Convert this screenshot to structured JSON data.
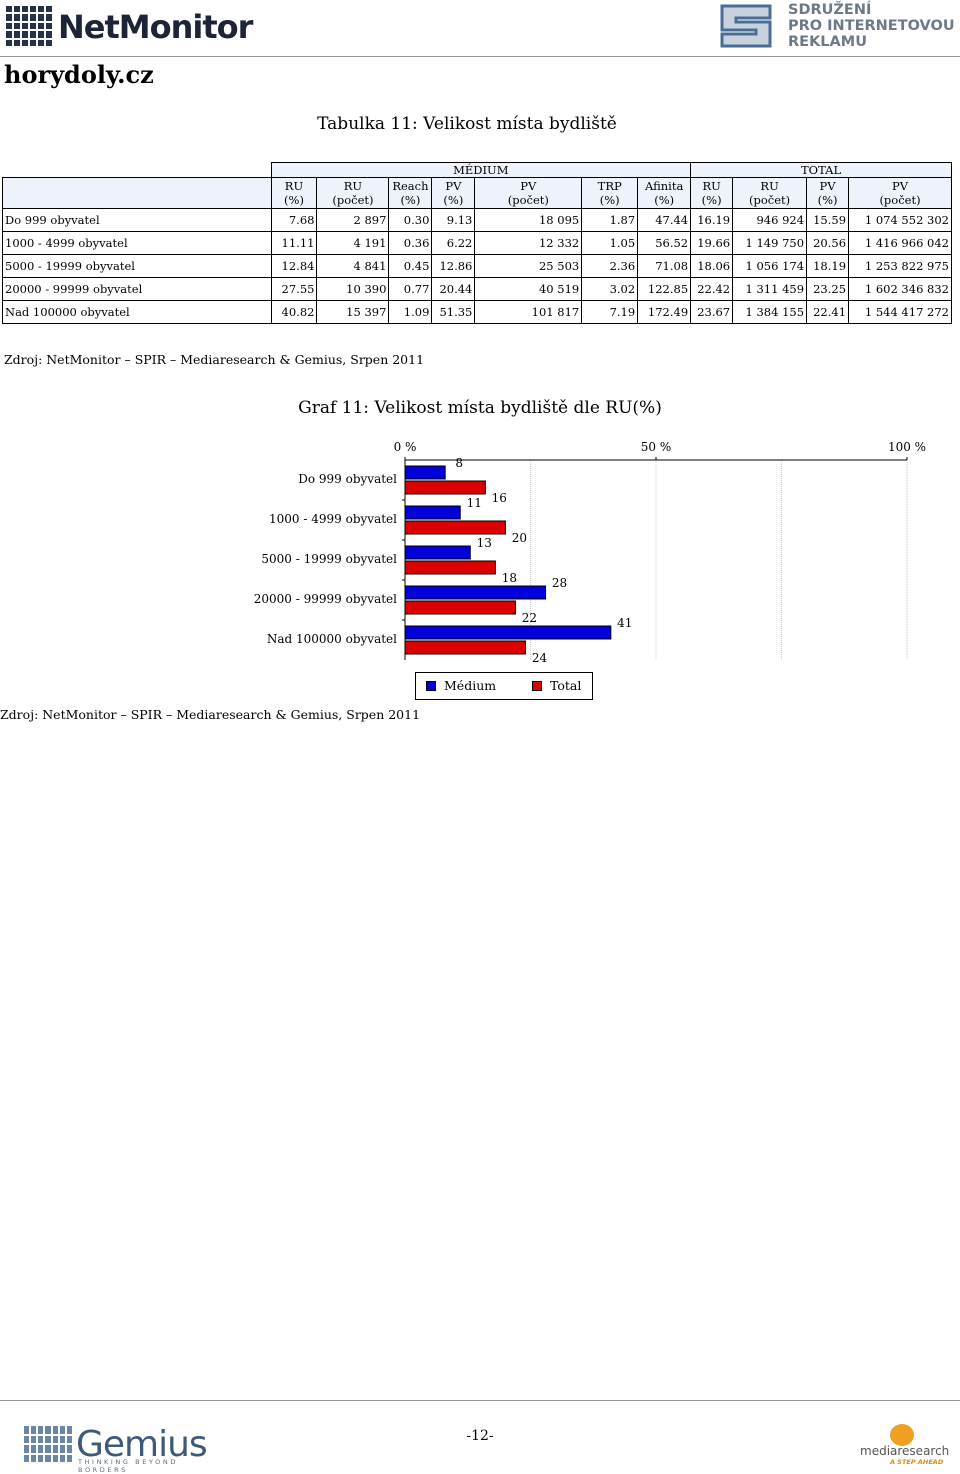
{
  "header": {
    "logo_text": "NetMonitor",
    "partner_logo_lines": [
      "SDRUŽENÍ",
      "PRO INTERNETOVOU",
      "REKLAMU"
    ],
    "site": "horydoly.cz"
  },
  "table": {
    "title": "Tabulka 11: Velikost místa bydliště",
    "group_medium": "MÉDIUM",
    "group_total": "TOTAL",
    "columns": [
      [
        "RU",
        "(%)"
      ],
      [
        "RU",
        "(počet)"
      ],
      [
        "Reach",
        "(%)"
      ],
      [
        "PV",
        "(%)"
      ],
      [
        "PV",
        "(počet)"
      ],
      [
        "TRP",
        "(%)"
      ],
      [
        "Afinita",
        "(%)"
      ],
      [
        "RU",
        "(%)"
      ],
      [
        "RU",
        "(počet)"
      ],
      [
        "PV",
        "(%)"
      ],
      [
        "PV",
        "(počet)"
      ]
    ],
    "rows": [
      {
        "label": "Do 999 obyvatel",
        "cells": [
          "7.68",
          "2 897",
          "0.30",
          "9.13",
          "18 095",
          "1.87",
          "47.44",
          "16.19",
          "946 924",
          "15.59",
          "1 074 552 302"
        ]
      },
      {
        "label": "1000 - 4999 obyvatel",
        "cells": [
          "11.11",
          "4 191",
          "0.36",
          "6.22",
          "12 332",
          "1.05",
          "56.52",
          "19.66",
          "1 149 750",
          "20.56",
          "1 416 966 042"
        ]
      },
      {
        "label": "5000 - 19999 obyvatel",
        "cells": [
          "12.84",
          "4 841",
          "0.45",
          "12.86",
          "25 503",
          "2.36",
          "71.08",
          "18.06",
          "1 056 174",
          "18.19",
          "1 253 822 975"
        ]
      },
      {
        "label": "20000 - 99999 obyvatel",
        "cells": [
          "27.55",
          "10 390",
          "0.77",
          "20.44",
          "40 519",
          "3.02",
          "122.85",
          "22.42",
          "1 311 459",
          "23.25",
          "1 602 346 832"
        ]
      },
      {
        "label": "Nad 100000 obyvatel",
        "cells": [
          "40.82",
          "15 397",
          "1.09",
          "51.35",
          "101 817",
          "7.19",
          "172.49",
          "23.67",
          "1 384 155",
          "22.41",
          "1 544 417 272"
        ]
      }
    ],
    "source": "Zdroj: NetMonitor – SPIR – Mediaresearch & Gemius, Srpen 2011"
  },
  "chart_data": {
    "type": "bar",
    "orientation": "horizontal",
    "title": "Graf 11: Velikost místa bydliště dle RU(%)",
    "categories": [
      "Do 999 obyvatel",
      "1000 - 4999 obyvatel",
      "5000 - 19999 obyvatel",
      "20000 - 99999 obyvatel",
      "Nad 100000 obyvatel"
    ],
    "series": [
      {
        "name": "Médium",
        "values": [
          8,
          11,
          13,
          28,
          41
        ],
        "color": "#0000dd"
      },
      {
        "name": "Total",
        "values": [
          16,
          20,
          18,
          22,
          24
        ],
        "color": "#dd0000"
      }
    ],
    "xlim": [
      0,
      100
    ],
    "xticks": [
      "0 %",
      "50 %",
      "100 %"
    ],
    "grid": true,
    "legend_position": "bottom"
  },
  "chart_source": "Zdroj: NetMonitor – SPIR – Mediaresearch & Gemius, Srpen 2011",
  "footer": {
    "page": "-12-",
    "gemius_text": "Gemius",
    "gemius_sub": "THINKING BEYOND BORDERS",
    "mediaresearch_text": "mediaresearch",
    "mediaresearch_sub": "A STEP AHEAD"
  }
}
